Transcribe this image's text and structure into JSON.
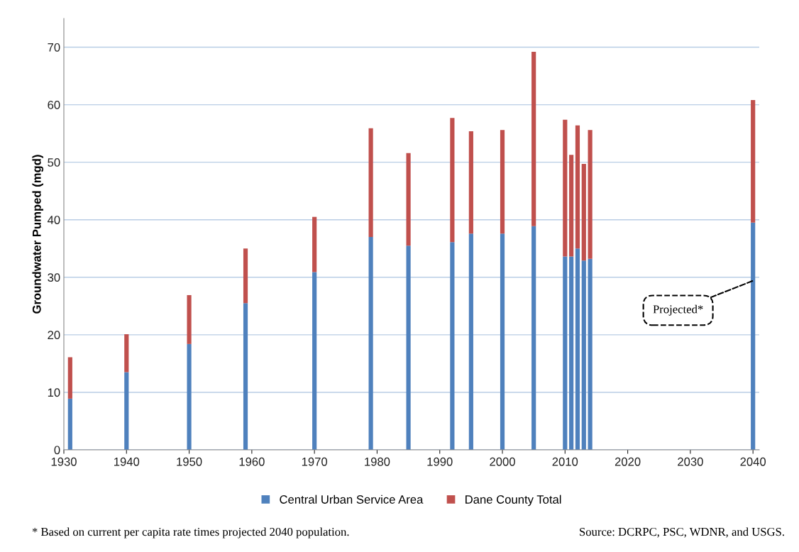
{
  "chart_data": {
    "type": "bar",
    "stacked": true,
    "ylabel": "Groundwater Pumped (mgd)",
    "x": [
      1931,
      1940,
      1950,
      1959,
      1970,
      1979,
      1985,
      1992,
      1995,
      2000,
      2005,
      2010,
      2011,
      2012,
      2013,
      2014,
      2040
    ],
    "series": [
      {
        "name": "Central Urban Service Area",
        "color": "#4f81bd",
        "values": [
          8.9,
          13.5,
          18.4,
          25.5,
          30.9,
          37.0,
          35.5,
          36.1,
          37.6,
          37.6,
          38.9,
          33.6,
          33.6,
          35.0,
          32.9,
          33.2,
          39.5
        ]
      },
      {
        "name": "Dane County Total",
        "color": "#c0504d",
        "values": [
          7.2,
          6.6,
          8.5,
          9.5,
          9.6,
          18.9,
          16.1,
          21.6,
          17.8,
          18.0,
          30.3,
          23.8,
          17.7,
          21.4,
          16.8,
          22.4,
          21.3
        ]
      }
    ],
    "xlim": [
      1930,
      2041
    ],
    "xticks": [
      1930,
      1940,
      1950,
      1960,
      1970,
      1980,
      1990,
      2000,
      2010,
      2020,
      2030,
      2040
    ],
    "ylim": [
      0,
      75
    ],
    "yticks": [
      0,
      10,
      20,
      30,
      40,
      50,
      60,
      70
    ],
    "grid": "y",
    "legend": "bottom",
    "annotations": [
      {
        "text": "Projected*",
        "x": 2040,
        "y": 29.4
      },
      "* Based on current per capita rate times projected 2040 population.",
      "Source: DCRPC, PSC, WDNR, and USGS."
    ]
  }
}
